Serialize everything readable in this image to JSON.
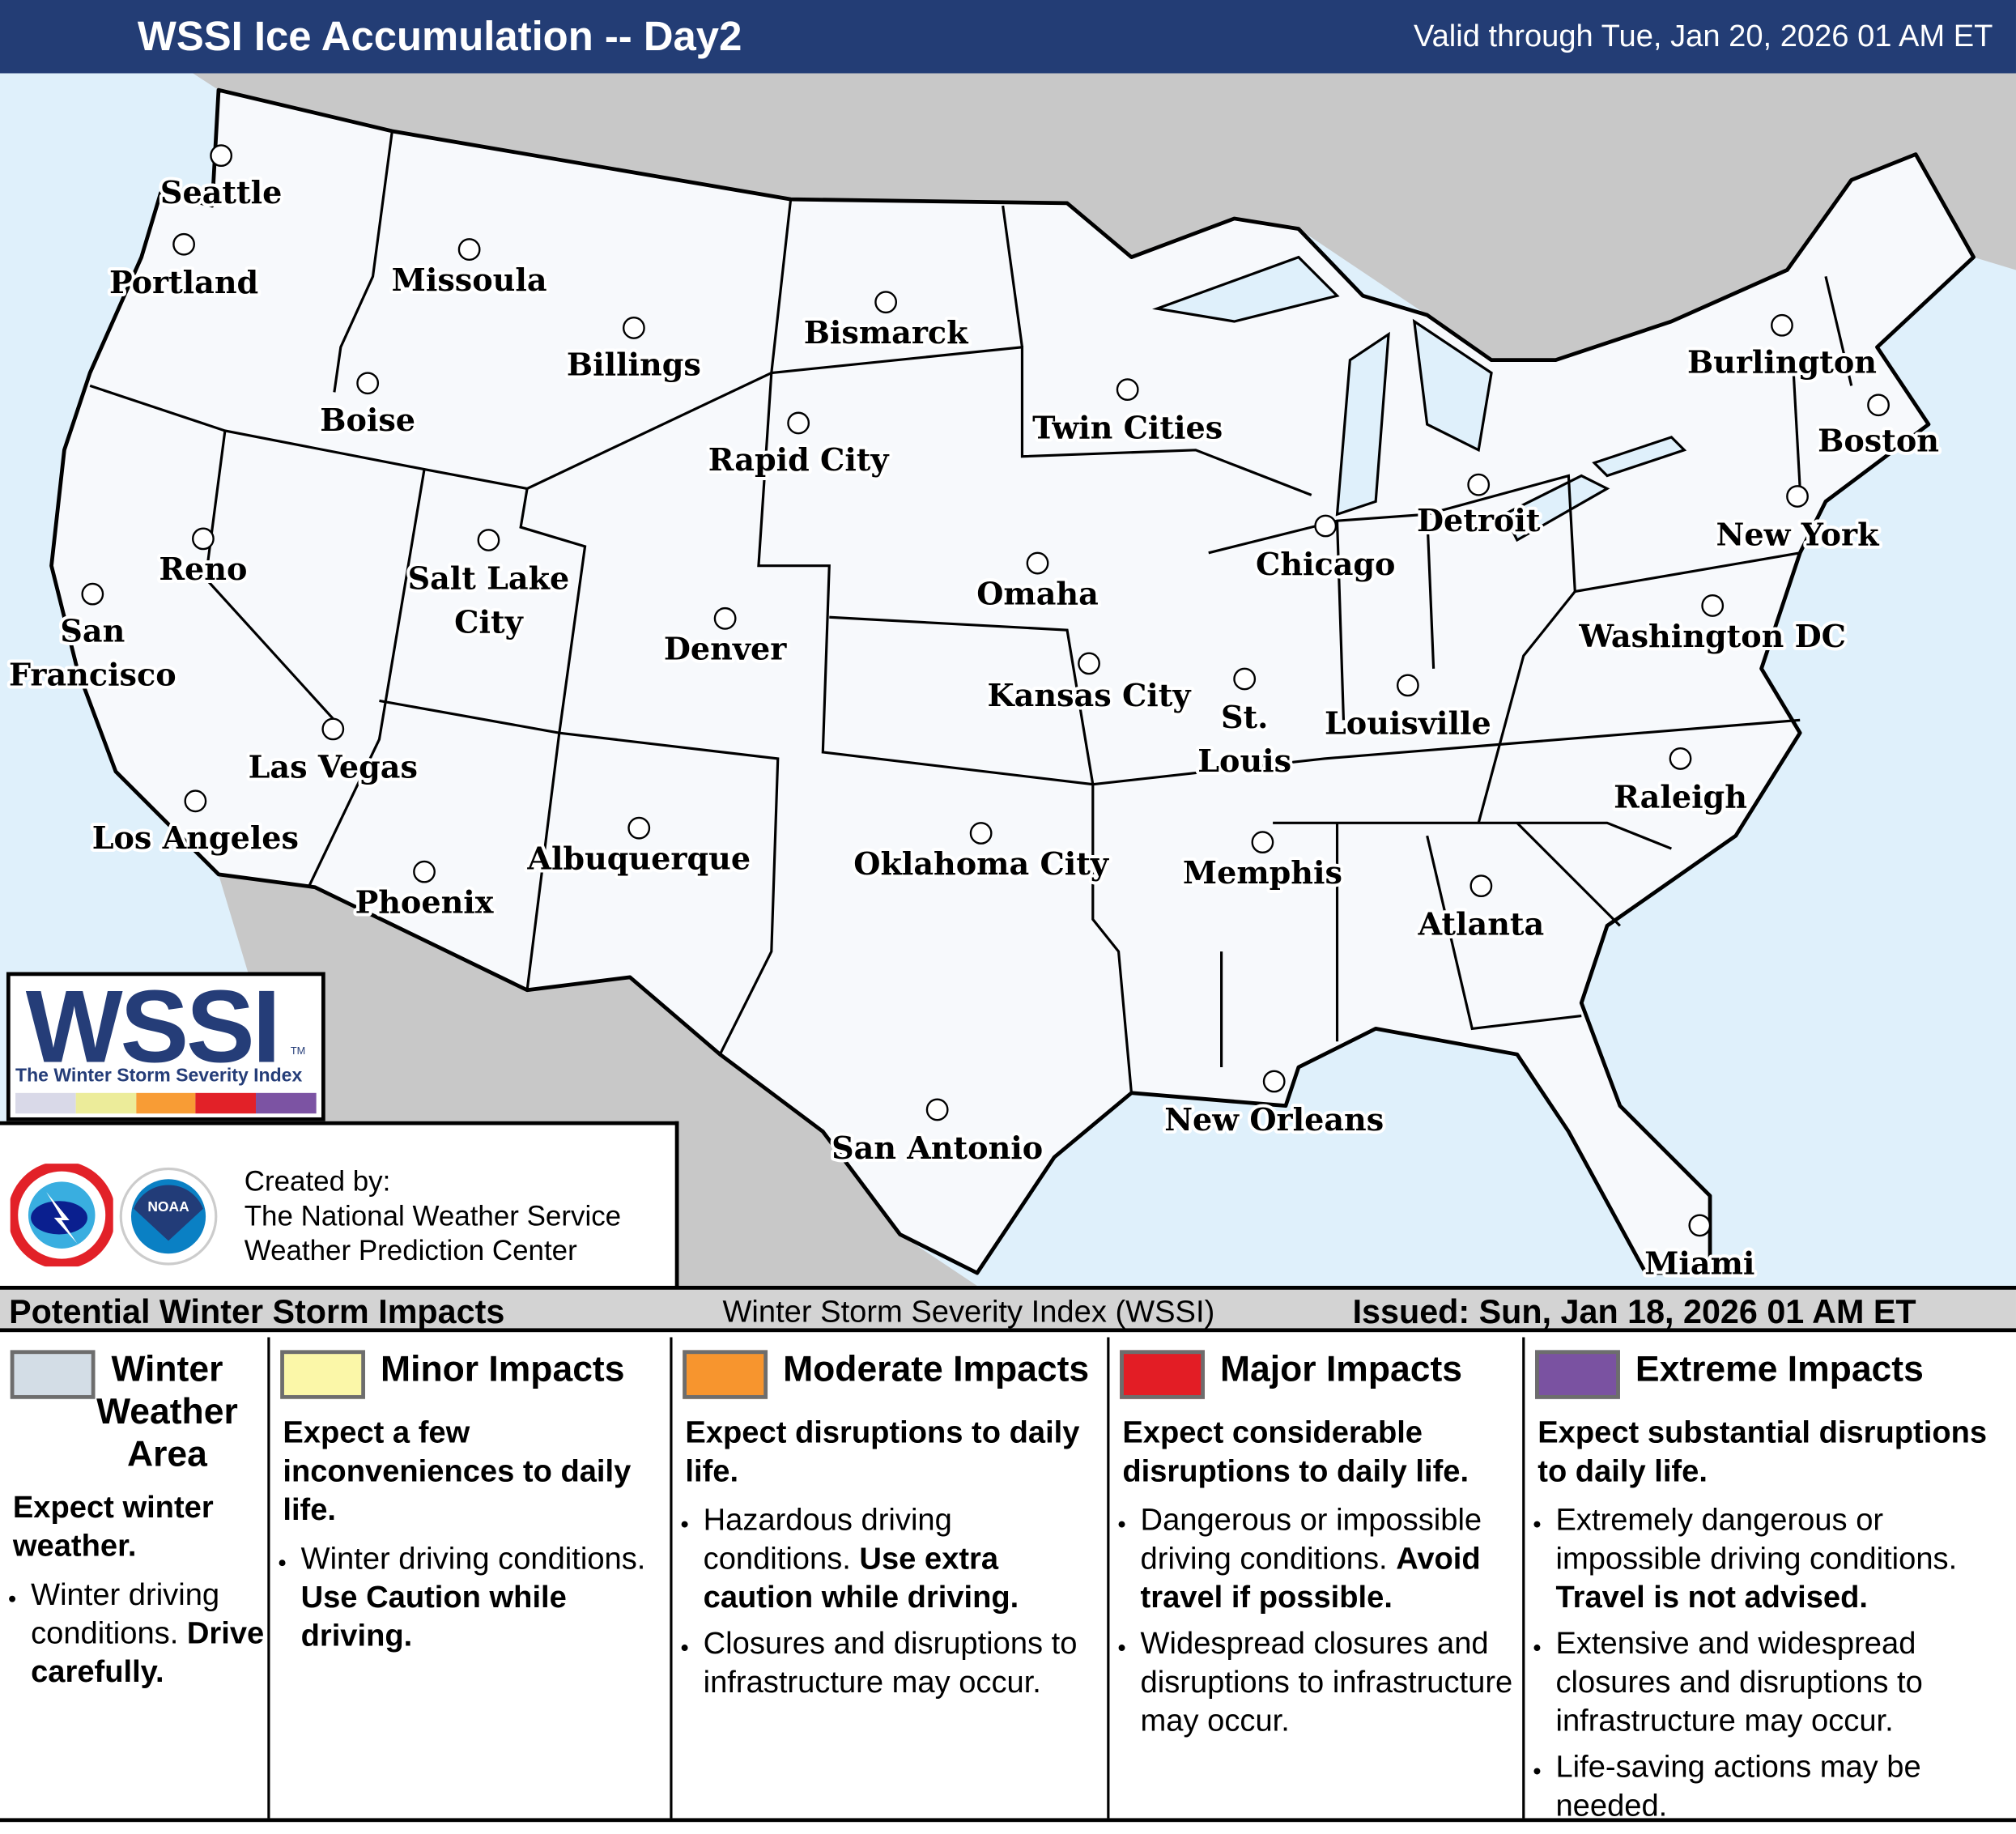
{
  "header": {
    "title": "WSSI Ice Accumulation -- Day2",
    "valid": "Valid through Tue, Jan 20, 2026 01 AM ET"
  },
  "colors": {
    "header_bg": "#233d75",
    "ocean": "#dff0fb",
    "land_outside": "#c8c8c8",
    "us_land": "#f7f9fc"
  },
  "map": {
    "cities": [
      {
        "name": "Seattle"
      },
      {
        "name": "Portland"
      },
      {
        "name": "Missoula"
      },
      {
        "name": "Billings"
      },
      {
        "name": "Bismarck"
      },
      {
        "name": "Boise"
      },
      {
        "name": "Rapid City"
      },
      {
        "name": "Twin Cities"
      },
      {
        "name": "Burlington"
      },
      {
        "name": "Boston"
      },
      {
        "name": "Detroit"
      },
      {
        "name": "New York"
      },
      {
        "name": "Chicago"
      },
      {
        "name": "Reno"
      },
      {
        "name": "Salt Lake City"
      },
      {
        "name": "Omaha"
      },
      {
        "name": "Denver"
      },
      {
        "name": "San Francisco"
      },
      {
        "name": "Washington DC"
      },
      {
        "name": "Kansas City"
      },
      {
        "name": "St. Louis"
      },
      {
        "name": "Louisville"
      },
      {
        "name": "Las Vegas"
      },
      {
        "name": "Raleigh"
      },
      {
        "name": "Los Angeles"
      },
      {
        "name": "Oklahoma City"
      },
      {
        "name": "Memphis"
      },
      {
        "name": "Albuquerque"
      },
      {
        "name": "Phoenix"
      },
      {
        "name": "Atlanta"
      },
      {
        "name": "New Orleans"
      },
      {
        "name": "San Antonio"
      },
      {
        "name": "Miami"
      }
    ]
  },
  "logo": {
    "text": "WSSI",
    "tm": "TM",
    "subtitle": "The Winter Storm Severity Index",
    "bar_colors": [
      "#d9d9e8",
      "#ecec9a",
      "#f89c35",
      "#e22128",
      "#7c53a3"
    ]
  },
  "credits": {
    "line1": "Created by:",
    "line2": "The National Weather Service",
    "line3": "Weather Prediction Center",
    "nws_logo": "NATIONAL WEATHER SERVICE",
    "noaa_logo": "NOAA"
  },
  "legend": {
    "left": "Potential Winter Storm Impacts",
    "center": "Winter Storm Severity Index (WSSI)",
    "right": "Issued: Sun, Jan 18, 2026 01 AM ET",
    "categories": [
      {
        "name": "Winter Weather Area",
        "color": "#d3dde6",
        "summary": "Expect winter weather.",
        "bullets": [
          [
            {
              "t": "Winter driving conditions. "
            },
            {
              "t": "Drive carefully.",
              "b": true
            }
          ]
        ]
      },
      {
        "name": "Minor Impacts",
        "color": "#fbf7a8",
        "summary": "Expect a few inconveniences to daily life.",
        "bullets": [
          [
            {
              "t": "Winter driving conditions. "
            },
            {
              "t": "Use Caution while driving.",
              "b": true
            }
          ]
        ]
      },
      {
        "name": "Moderate Impacts",
        "color": "#f7952e",
        "summary": "Expect disruptions to daily life.",
        "bullets": [
          [
            {
              "t": "Hazardous driving conditions. "
            },
            {
              "t": "Use extra caution while driving.",
              "b": true
            }
          ],
          [
            {
              "t": "Closures and disruptions to infrastructure may occur."
            }
          ]
        ]
      },
      {
        "name": "Major Impacts",
        "color": "#e31d25",
        "summary": "Expect considerable disruptions to daily life.",
        "bullets": [
          [
            {
              "t": "Dangerous or impossible driving conditions. "
            },
            {
              "t": "Avoid travel if possible.",
              "b": true
            }
          ],
          [
            {
              "t": "Widespread closures and disruptions to infrastructure may occur."
            }
          ]
        ]
      },
      {
        "name": "Extreme Impacts",
        "color": "#7a52a1",
        "summary": "Expect substantial disruptions to daily life.",
        "bullets": [
          [
            {
              "t": "Extremely dangerous or impossible driving conditions. "
            },
            {
              "t": "Travel is not advised.",
              "b": true
            }
          ],
          [
            {
              "t": "Extensive and widespread closures and disruptions to infrastructure may occur."
            }
          ],
          [
            {
              "t": "Life-saving actions may be needed."
            }
          ]
        ]
      }
    ]
  }
}
